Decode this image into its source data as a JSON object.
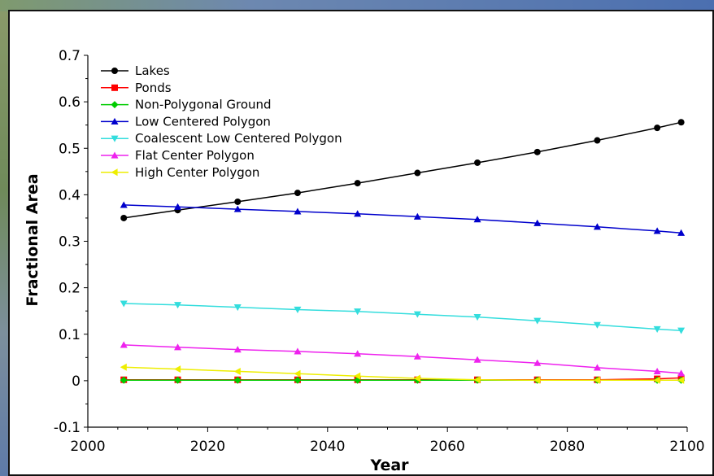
{
  "chart_data": {
    "type": "line",
    "title": "",
    "xlabel": "Year",
    "ylabel": "Fractional Area",
    "xlim": [
      2000,
      2100
    ],
    "ylim": [
      -0.1,
      0.7
    ],
    "xticks": [
      "2000",
      "2020",
      "2040",
      "2060",
      "2080",
      "2100"
    ],
    "yticks": [
      "-0.1",
      "0",
      "0.1",
      "0.2",
      "0.3",
      "0.4",
      "0.5",
      "0.6",
      "0.7"
    ],
    "grid": false,
    "legend_position": "top-left",
    "x": [
      2006,
      2015,
      2025,
      2035,
      2045,
      2055,
      2065,
      2075,
      2085,
      2095,
      2099
    ],
    "series": [
      {
        "name": "Lakes",
        "color": "#000000",
        "marker": "circle",
        "values": [
          0.35,
          0.367,
          0.385,
          0.404,
          0.425,
          0.447,
          0.469,
          0.492,
          0.517,
          0.544,
          0.556
        ]
      },
      {
        "name": "Ponds",
        "color": "#ff0000",
        "marker": "square",
        "values": [
          0.002,
          0.002,
          0.002,
          0.002,
          0.002,
          0.002,
          0.002,
          0.002,
          0.002,
          0.004,
          0.006
        ]
      },
      {
        "name": "Non-Polygonal Ground",
        "color": "#00cc00",
        "marker": "diamond",
        "values": [
          0.001,
          0.001,
          0.001,
          0.001,
          0.001,
          0.001,
          0.001,
          0.001,
          0.001,
          0.001,
          0.001
        ]
      },
      {
        "name": "Low Centered Polygon",
        "color": "#0000cc",
        "marker": "triangle-up",
        "values": [
          0.378,
          0.374,
          0.369,
          0.364,
          0.359,
          0.353,
          0.347,
          0.339,
          0.331,
          0.322,
          0.318
        ]
      },
      {
        "name": "Coalescent Low Centered Polygon",
        "color": "#33dddd",
        "marker": "triangle-down",
        "values": [
          0.166,
          0.163,
          0.158,
          0.153,
          0.149,
          0.143,
          0.137,
          0.129,
          0.12,
          0.111,
          0.108
        ]
      },
      {
        "name": "Flat Center Polygon",
        "color": "#ee22ee",
        "marker": "triangle-up",
        "values": [
          0.077,
          0.072,
          0.067,
          0.063,
          0.058,
          0.052,
          0.045,
          0.038,
          0.028,
          0.02,
          0.016
        ]
      },
      {
        "name": "High Center Polygon",
        "color": "#eeee00",
        "marker": "triangle-left",
        "values": [
          0.029,
          0.025,
          0.02,
          0.015,
          0.01,
          0.005,
          0.002,
          0.001,
          0.001,
          0.001,
          0.001
        ]
      }
    ]
  }
}
